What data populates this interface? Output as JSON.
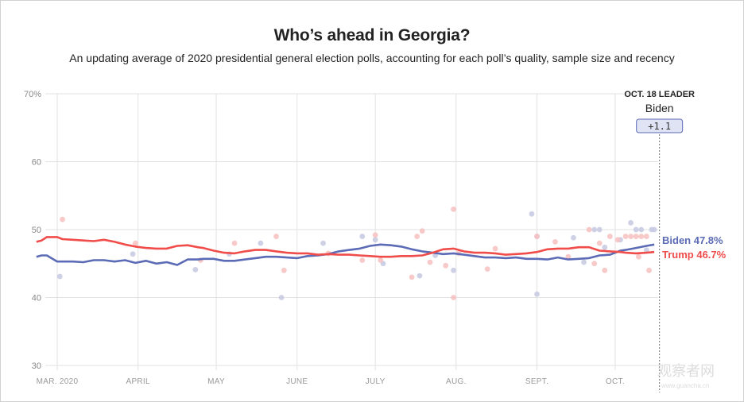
{
  "title": "Who’s ahead in Georgia?",
  "subtitle": "An updating average of 2020 presidential general election polls, accounting for each poll’s quality, sample size and recency",
  "watermark": {
    "text": "观察者网",
    "url": "www.guancha.cn"
  },
  "colors": {
    "biden": "#5b6bb5",
    "trump": "#ef4c4a",
    "biden_dot": "#c5c9e2",
    "trump_dot": "#f7c0bf",
    "grid": "#e2e2e2"
  },
  "chart_data": {
    "type": "line",
    "title": "Who’s ahead in Georgia?",
    "xlabel": "",
    "ylabel": "",
    "x_unit": "day of 2020 (Mar 1 = 0)",
    "xlim": [
      0,
      231
    ],
    "ylim": [
      30,
      70
    ],
    "yticks": [
      {
        "value": 70,
        "label": "70%"
      },
      {
        "value": 60,
        "label": "60"
      },
      {
        "value": 50,
        "label": "50"
      },
      {
        "value": 40,
        "label": "40"
      },
      {
        "value": 30,
        "label": "30"
      }
    ],
    "xticks": [
      {
        "day": 0,
        "label": "MAR. 2020"
      },
      {
        "day": 31,
        "label": "APRIL"
      },
      {
        "day": 61,
        "label": "MAY"
      },
      {
        "day": 92,
        "label": "JUNE"
      },
      {
        "day": 122,
        "label": "JULY"
      },
      {
        "day": 153,
        "label": "AUG."
      },
      {
        "day": 184,
        "label": "SEPT."
      },
      {
        "day": 214,
        "label": "OCT."
      }
    ],
    "series": [
      {
        "name": "Biden",
        "color": "#5b6bb5",
        "x": [
          -8,
          -6,
          -4,
          0,
          2,
          6,
          10,
          14,
          18,
          22,
          26,
          30,
          34,
          38,
          42,
          46,
          50,
          54,
          56,
          60,
          64,
          68,
          72,
          76,
          80,
          84,
          88,
          92,
          96,
          100,
          104,
          108,
          112,
          116,
          120,
          124,
          128,
          132,
          136,
          140,
          144,
          148,
          152,
          156,
          160,
          164,
          168,
          172,
          176,
          180,
          184,
          188,
          192,
          196,
          200,
          204,
          208,
          212,
          216,
          218,
          222,
          226,
          229
        ],
        "y": [
          46,
          46.2,
          46.2,
          45.3,
          45.3,
          45.3,
          45.2,
          45.5,
          45.5,
          45.3,
          45.5,
          45.1,
          45.4,
          45,
          45.2,
          44.8,
          45.6,
          45.6,
          45.7,
          45.7,
          45.4,
          45.4,
          45.6,
          45.8,
          46,
          46,
          45.9,
          45.8,
          46.1,
          46.2,
          46.4,
          46.8,
          47,
          47.2,
          47.6,
          47.8,
          47.7,
          47.5,
          47.1,
          46.8,
          46.6,
          46.4,
          46.5,
          46.3,
          46.1,
          45.9,
          45.9,
          45.8,
          45.9,
          45.7,
          45.7,
          45.6,
          45.9,
          45.6,
          45.7,
          45.8,
          46.2,
          46.3,
          46.9,
          47,
          47.3,
          47.6,
          47.8
        ]
      },
      {
        "name": "Trump",
        "color": "#ef4c4a",
        "x": [
          -8,
          -6,
          -4,
          0,
          2,
          6,
          10,
          14,
          18,
          22,
          26,
          30,
          34,
          38,
          42,
          46,
          50,
          54,
          56,
          60,
          64,
          68,
          72,
          76,
          80,
          84,
          88,
          92,
          96,
          100,
          104,
          108,
          112,
          116,
          120,
          124,
          128,
          132,
          136,
          140,
          144,
          148,
          152,
          156,
          160,
          164,
          168,
          172,
          176,
          180,
          184,
          188,
          192,
          196,
          200,
          204,
          208,
          212,
          216,
          218,
          222,
          226,
          229
        ],
        "y": [
          48.2,
          48.4,
          48.9,
          48.9,
          48.6,
          48.5,
          48.4,
          48.3,
          48.5,
          48.2,
          47.8,
          47.5,
          47.3,
          47.2,
          47.2,
          47.6,
          47.7,
          47.4,
          47.3,
          46.9,
          46.6,
          46.5,
          46.8,
          47,
          47,
          46.8,
          46.6,
          46.5,
          46.5,
          46.3,
          46.4,
          46.3,
          46.3,
          46.2,
          46.1,
          46,
          46,
          46.1,
          46.1,
          46.2,
          46.6,
          47.1,
          47.2,
          46.8,
          46.6,
          46.6,
          46.5,
          46.3,
          46.4,
          46.5,
          46.7,
          47.1,
          47.2,
          47.2,
          47.4,
          47.4,
          46.9,
          46.8,
          46.7,
          46.6,
          46.5,
          46.6,
          46.7
        ]
      }
    ],
    "polls": {
      "biden": [
        {
          "x": 1,
          "y": 43.1
        },
        {
          "x": 29,
          "y": 46.4
        },
        {
          "x": 53,
          "y": 44.1
        },
        {
          "x": 66,
          "y": 46.4
        },
        {
          "x": 78,
          "y": 48
        },
        {
          "x": 86,
          "y": 40
        },
        {
          "x": 102,
          "y": 48
        },
        {
          "x": 117,
          "y": 49
        },
        {
          "x": 122,
          "y": 48.5
        },
        {
          "x": 125,
          "y": 45
        },
        {
          "x": 139,
          "y": 43.2
        },
        {
          "x": 145,
          "y": 46.2
        },
        {
          "x": 152,
          "y": 44
        },
        {
          "x": 182,
          "y": 52.3
        },
        {
          "x": 184,
          "y": 40.5
        },
        {
          "x": 184,
          "y": 49
        },
        {
          "x": 198,
          "y": 48.8
        },
        {
          "x": 202,
          "y": 45.2
        },
        {
          "x": 206,
          "y": 50
        },
        {
          "x": 208,
          "y": 50
        },
        {
          "x": 210,
          "y": 47.4
        },
        {
          "x": 216,
          "y": 48.5
        },
        {
          "x": 220,
          "y": 51
        },
        {
          "x": 222,
          "y": 50
        },
        {
          "x": 224,
          "y": 50
        },
        {
          "x": 226,
          "y": 47
        },
        {
          "x": 228,
          "y": 50
        },
        {
          "x": 229,
          "y": 50
        }
      ],
      "trump": [
        {
          "x": 2,
          "y": 51.5
        },
        {
          "x": 30,
          "y": 48
        },
        {
          "x": 55,
          "y": 45.5
        },
        {
          "x": 68,
          "y": 48
        },
        {
          "x": 84,
          "y": 49
        },
        {
          "x": 87,
          "y": 44
        },
        {
          "x": 104,
          "y": 46.5
        },
        {
          "x": 117,
          "y": 45.5
        },
        {
          "x": 122,
          "y": 49.2
        },
        {
          "x": 124,
          "y": 45.5
        },
        {
          "x": 136,
          "y": 43
        },
        {
          "x": 138,
          "y": 49
        },
        {
          "x": 140,
          "y": 49.8
        },
        {
          "x": 143,
          "y": 45.2
        },
        {
          "x": 149,
          "y": 44.7
        },
        {
          "x": 152,
          "y": 53
        },
        {
          "x": 152,
          "y": 40
        },
        {
          "x": 154,
          "y": 46.5
        },
        {
          "x": 165,
          "y": 44.2
        },
        {
          "x": 168,
          "y": 47.2
        },
        {
          "x": 184,
          "y": 49
        },
        {
          "x": 191,
          "y": 48.2
        },
        {
          "x": 196,
          "y": 46
        },
        {
          "x": 204,
          "y": 50
        },
        {
          "x": 206,
          "y": 45
        },
        {
          "x": 208,
          "y": 48
        },
        {
          "x": 210,
          "y": 44
        },
        {
          "x": 212,
          "y": 49
        },
        {
          "x": 215,
          "y": 48.5
        },
        {
          "x": 218,
          "y": 49
        },
        {
          "x": 220,
          "y": 49
        },
        {
          "x": 222,
          "y": 49
        },
        {
          "x": 223,
          "y": 46
        },
        {
          "x": 224,
          "y": 49
        },
        {
          "x": 226,
          "y": 49
        },
        {
          "x": 227,
          "y": 44
        }
      ]
    },
    "leader": {
      "date_label": "OCT. 18 LEADER",
      "name": "Biden",
      "margin": "+1.1",
      "day": 231
    },
    "end_labels": [
      {
        "name": "Biden",
        "value": "47.8%"
      },
      {
        "name": "Trump",
        "value": "46.7%"
      }
    ]
  }
}
